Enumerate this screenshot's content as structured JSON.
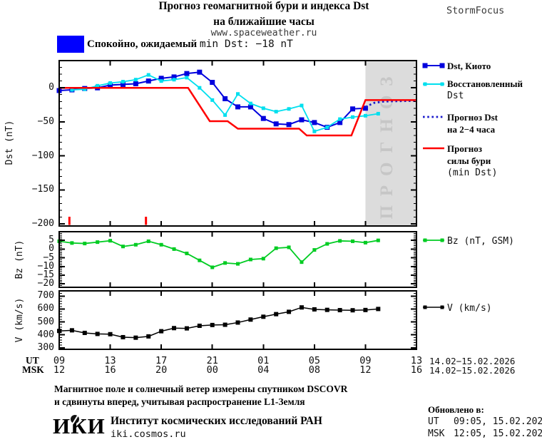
{
  "header": {
    "title_line1": "Прогноз геомагнитной бури и индекса Dst",
    "title_line2": "на ближайшие часы",
    "title_line3": "www.spaceweather.ru",
    "brand": "StormFocus"
  },
  "status": {
    "prefix": "Спокойно, ожидаемый ",
    "value": "min Dst: −18 nT"
  },
  "colors": {
    "accent_blue": "#0000ff",
    "kyoto_blue": "#0000dd",
    "restored_cyan": "#00dfee",
    "forecast_dotted_blue": "#1a1acc",
    "storm_red": "#ff0000",
    "bz_green": "#00cc22",
    "v_black": "#000000",
    "forecast_region_gray": "#dcdcdc",
    "forecast_label_gray": "#c6c6c6"
  },
  "chart_data": [
    {
      "type": "line",
      "name": "dst",
      "ylabel": "Dst (nT)",
      "ylim": [
        40,
        -203
      ],
      "yticks": [
        0,
        -50,
        -100,
        -150,
        -200
      ],
      "ytick_labels": [
        "0",
        "−50",
        "−100",
        "−150",
        "−200"
      ],
      "yminor_step": 10,
      "forecast_region": {
        "x_start": 24,
        "x_end": 28,
        "label": "ПРОГНОЗ"
      },
      "event_marks_x": [
        0.8,
        6.8
      ],
      "series": [
        {
          "name": "Dst, Киото",
          "color": "#0000dd",
          "marker_size": 7,
          "line_width": 2,
          "x": [
            0,
            1,
            2,
            3,
            4,
            5,
            6,
            7,
            8,
            9,
            10,
            11,
            12,
            13,
            14,
            15,
            16,
            17,
            18,
            19,
            20,
            21,
            22,
            23,
            24
          ],
          "values": [
            -4,
            -3,
            -1,
            0,
            4,
            5,
            6,
            10,
            14,
            16,
            21,
            23,
            8,
            -16,
            -28,
            -28,
            -45,
            -53,
            -54,
            -47,
            -51,
            -58,
            -51,
            -31,
            -30
          ]
        },
        {
          "name": "Восстановленный Dst",
          "color": "#00dfee",
          "marker_size": 5,
          "line_width": 1.8,
          "x": [
            1,
            2,
            3,
            4,
            5,
            6,
            7,
            8,
            9,
            10,
            11,
            12,
            13,
            14,
            15,
            16,
            17,
            18,
            19,
            20,
            21,
            22,
            23,
            24,
            25
          ],
          "values": [
            -3,
            -2,
            3,
            7,
            9,
            12,
            19,
            10,
            12,
            15,
            0,
            -18,
            -40,
            -9,
            -23,
            -30,
            -35,
            -31,
            -26,
            -64,
            -58,
            -46,
            -43,
            -41,
            -38
          ]
        },
        {
          "name": "Прогноз Dst на 2−4 часа",
          "color": "#1a1acc",
          "style": "dotted",
          "line_width": 2.8,
          "x": [
            24,
            24.7,
            25.5,
            28
          ],
          "values": [
            -28,
            -22,
            -20,
            -19
          ]
        },
        {
          "name": "Прогноз силы бури (min Dst)",
          "color": "#ff0000",
          "line_width": 2.5,
          "x": [
            0,
            10.1,
            11.8,
            13.2,
            14,
            18.8,
            19.4,
            22.9,
            24,
            28
          ],
          "values": [
            0,
            0,
            -49,
            -49,
            -60,
            -60,
            -70,
            -70,
            -18,
            -18
          ]
        }
      ]
    },
    {
      "type": "line",
      "name": "bz",
      "ylabel": "Bz (nT)",
      "legend_label": "Bz (nT, GSM)",
      "ylim": [
        10,
        -22
      ],
      "yticks": [
        5,
        0,
        -5,
        -10,
        -15,
        -20
      ],
      "ytick_labels": [
        "5",
        "0",
        "−5",
        "−10",
        "−15",
        "−20"
      ],
      "yminor_step": 1,
      "series": [
        {
          "name": "Bz (nT, GSM)",
          "color": "#00cc22",
          "marker_size": 5,
          "line_width": 1.8,
          "x": [
            0,
            1,
            2,
            3,
            4,
            5,
            6,
            7,
            8,
            9,
            10,
            11,
            12,
            13,
            14,
            15,
            16,
            17,
            18,
            19,
            20,
            21,
            22,
            23,
            24,
            25
          ],
          "values": [
            4.5,
            3.5,
            3.2,
            4,
            4.8,
            1.5,
            2.5,
            4.5,
            2.5,
            0,
            -2.5,
            -6.5,
            -10.5,
            -8,
            -8.5,
            -6,
            -5.5,
            0.5,
            1,
            -7.5,
            -0.5,
            3,
            4.7,
            4.5,
            3.7,
            5
          ]
        }
      ]
    },
    {
      "type": "line",
      "name": "v",
      "ylabel": "V (km/s)",
      "legend_label": "V (km/s)",
      "ylim": [
        740,
        288
      ],
      "yticks": [
        700,
        600,
        500,
        400,
        300
      ],
      "ytick_labels": [
        "700",
        "600",
        "500",
        "400",
        "300"
      ],
      "yminor_step": 20,
      "series": [
        {
          "name": "V (km/s)",
          "color": "#000000",
          "marker_size": 6,
          "line_width": 1.5,
          "x": [
            0,
            1,
            2,
            3,
            4,
            5,
            6,
            7,
            8,
            9,
            10,
            11,
            12,
            13,
            14,
            15,
            16,
            17,
            18,
            19,
            20,
            21,
            22,
            23,
            24,
            25
          ],
          "values": [
            430,
            435,
            415,
            407,
            405,
            382,
            378,
            388,
            428,
            452,
            450,
            470,
            476,
            478,
            495,
            518,
            540,
            560,
            578,
            612,
            597,
            593,
            591,
            590,
            592,
            600
          ]
        }
      ]
    }
  ],
  "xaxis": {
    "tick_hours": [
      0,
      4,
      8,
      12,
      16,
      20,
      24,
      28
    ],
    "ut_header": "UT",
    "msk_header": "MSK",
    "ut_labels": [
      "09",
      "13",
      "17",
      "21",
      "01",
      "05",
      "09",
      "13"
    ],
    "msk_labels": [
      "12",
      "16",
      "20",
      "00",
      "04",
      "08",
      "12",
      "16"
    ],
    "ut_date": "14.02−15.02.2026",
    "msk_date": "14.02−15.02.2026"
  },
  "legend": {
    "dst": [
      {
        "label": "Dst, Киото"
      },
      {
        "label": "Восстановленный",
        "line2": "Dst"
      },
      {
        "label": "Прогноз Dst",
        "line2": "на 2−4 часа"
      },
      {
        "label": "Прогноз",
        "line2": "силы бури",
        "line3": "(min Dst)"
      }
    ],
    "bz": "Bz (nT, GSM)",
    "v": "V (km/s)"
  },
  "footer": {
    "note1": "Магнитное поле и солнечный ветер измерены спутником DSCOVR",
    "note2": "и сдвинуты вперед, учитывая распространение L1-Земля",
    "logo_text": "ИКИ",
    "institute": "Институт космических исследований РАН",
    "site": "iki.cosmos.ru",
    "updated_label": "Обновлено в:",
    "updated_ut_label": "UT",
    "updated_ut_value": "09:05, 15.02.2026",
    "updated_msk_label": "MSK",
    "updated_msk_value": "12:05, 15.02.2026"
  }
}
